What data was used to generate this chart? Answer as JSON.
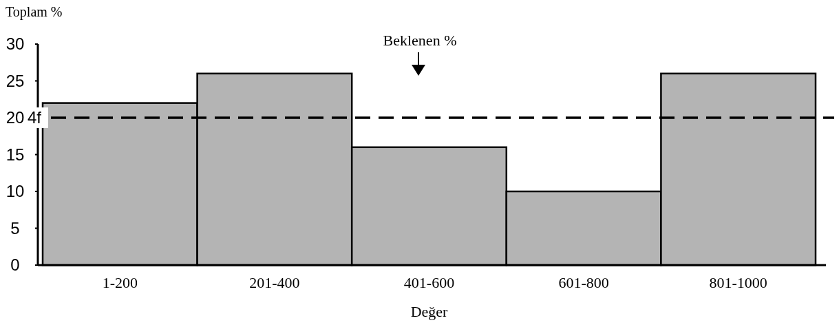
{
  "chart_data": {
    "type": "bar",
    "ylabel": "Toplam %",
    "xlabel": "Değer",
    "categories": [
      "1-200",
      "201-400",
      "401-600",
      "601-800",
      "801-1000"
    ],
    "values": [
      22,
      26,
      16,
      10,
      26
    ],
    "color": "#b4b4b4",
    "ylim": [
      0,
      30
    ],
    "yticks": [
      0,
      5,
      10,
      15,
      20,
      25,
      30
    ],
    "grid": false,
    "ref_lines": [
      {
        "axis": "y",
        "value": 20,
        "label": "Beklenen %",
        "line_style": "dashed",
        "color": "#000000"
      }
    ],
    "annotations": [
      "4f"
    ]
  }
}
